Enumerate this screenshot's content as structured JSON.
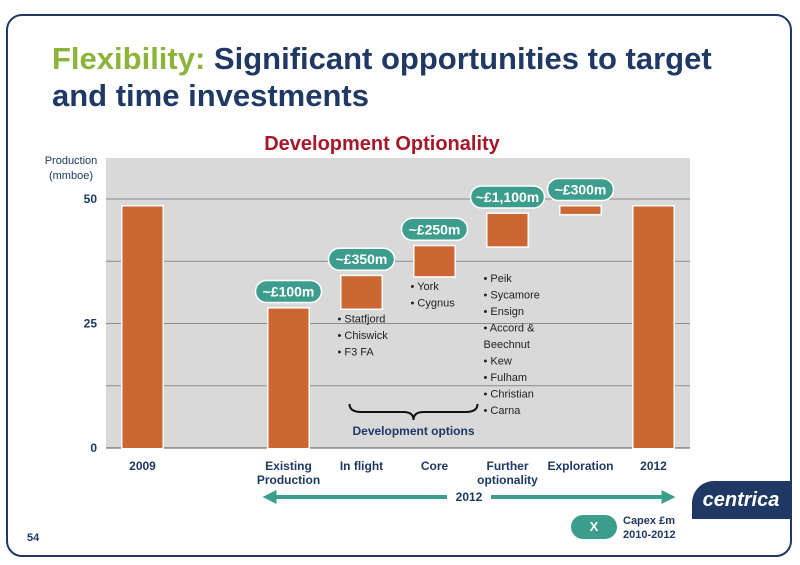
{
  "slide": {
    "title_keyword": "Flexibility:",
    "title_rest": " Significant opportunities to target and time investments",
    "page_number": "54",
    "logo": "centrica",
    "colors": {
      "navy": "#1f3864",
      "green": "#8cb33a",
      "red": "#a5182a",
      "teal": "#3d9d8c",
      "bar": "#cc6633",
      "plot_bg": "#d9d9d9"
    }
  },
  "legend": {
    "marker": "X",
    "line1": "Capex £m",
    "line2": "2010-2012"
  },
  "chart_data": {
    "type": "bar",
    "title": "Development Optionality",
    "ylabel": "Production\n(mmboe)",
    "ylim": [
      0,
      55
    ],
    "yticks": [
      0,
      25,
      50
    ],
    "grid": true,
    "categories": [
      "2009",
      "",
      "Existing\nProduction",
      "In flight",
      "Core",
      "Further\noptionality",
      "Exploration",
      "2012"
    ],
    "bars": [
      {
        "category": "2009",
        "bottom": 0,
        "top": 48.5,
        "capex": null,
        "bullets": []
      },
      {
        "category": "Existing\nProduction",
        "bottom": 0,
        "top": 28,
        "capex": "~£100m",
        "bullets": []
      },
      {
        "category": "In flight",
        "bottom": 28,
        "top": 34.5,
        "capex": "~£350m",
        "bullets": [
          "Statfjord",
          "Chiswick",
          "F3 FA"
        ]
      },
      {
        "category": "Core",
        "bottom": 34.5,
        "top": 40.5,
        "capex": "~£250m",
        "bullets": [
          "York",
          "Cygnus"
        ]
      },
      {
        "category": "Further\noptionality",
        "bottom": 40.5,
        "top": 47,
        "capex": "~£1,100m",
        "bullets": [
          "Peik",
          "Sycamore",
          "Ensign",
          "Accord &\nBeechnut",
          "Kew",
          "Fulham",
          "Christian",
          "Carna"
        ]
      },
      {
        "category": "Exploration",
        "bottom": 47,
        "top": 48.5,
        "capex": "~£300m",
        "bullets": []
      },
      {
        "category": "2012",
        "bottom": 0,
        "top": 48.5,
        "capex": null,
        "bullets": []
      }
    ],
    "brace_label": "Development options",
    "arrow_label": "2012"
  }
}
